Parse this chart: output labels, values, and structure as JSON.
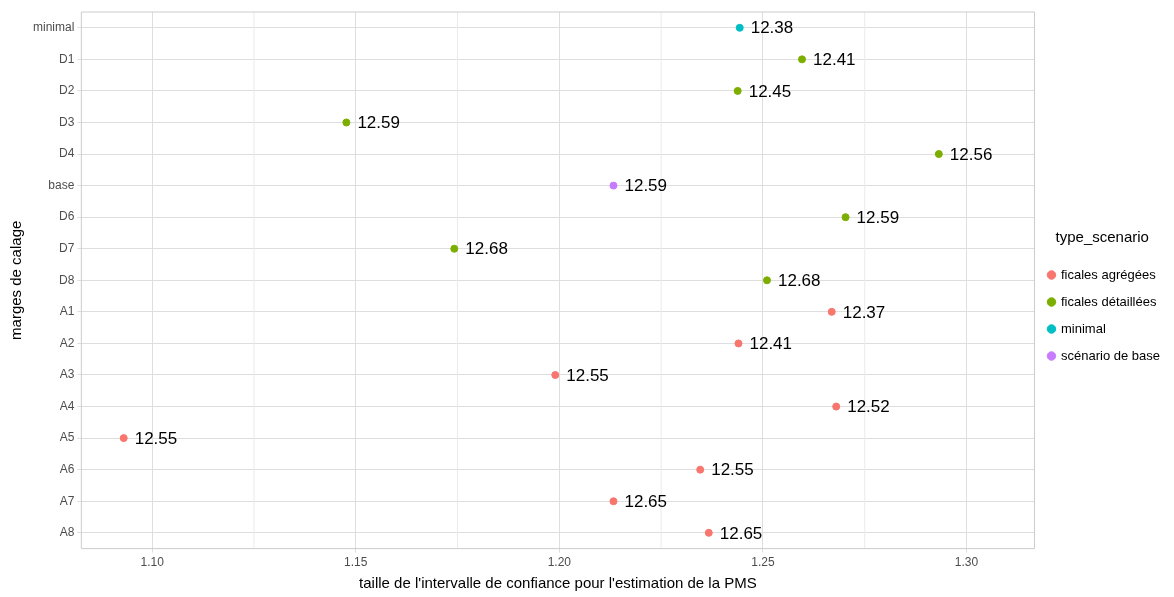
{
  "chart_data": {
    "type": "scatter",
    "orientation": "horizontal",
    "xlabel": "taille de l'intervalle de confiance pour l'estimation de la PMS",
    "ylabel": "marges de calage",
    "legend_title": "type_scenario",
    "categories": [
      "minimal",
      "D1",
      "D2",
      "D3",
      "D4",
      "base",
      "D6",
      "D7",
      "D8",
      "A1",
      "A2",
      "A3",
      "A4",
      "A5",
      "A6",
      "A7",
      "A8"
    ],
    "xlim": [
      1.0826,
      1.3167
    ],
    "xticks": [
      {
        "value": 1.1,
        "label": "1.10"
      },
      {
        "value": 1.15,
        "label": "1.15"
      },
      {
        "value": 1.2,
        "label": "1.20"
      },
      {
        "value": 1.25,
        "label": "1.25"
      },
      {
        "value": 1.3,
        "label": "1.30"
      }
    ],
    "series": [
      {
        "name": "ficales agrégées",
        "color": "#f8766d",
        "values": [
          null,
          null,
          null,
          null,
          null,
          null,
          null,
          null,
          null,
          1.2669,
          1.244,
          1.199,
          1.268,
          1.093,
          1.2346,
          1.2133,
          1.2367
        ]
      },
      {
        "name": "ficales détaillées",
        "color": "#7cae00",
        "values": [
          null,
          1.2596,
          1.2438,
          1.1477,
          1.2932,
          null,
          1.2703,
          1.1742,
          1.251,
          null,
          null,
          null,
          null,
          null,
          null,
          null,
          null
        ]
      },
      {
        "name": "minimal",
        "color": "#00bfc4",
        "values": [
          1.2443,
          null,
          null,
          null,
          null,
          null,
          null,
          null,
          null,
          null,
          null,
          null,
          null,
          null,
          null,
          null,
          null
        ]
      },
      {
        "name": "scénario de base",
        "color": "#c77cff",
        "values": [
          null,
          null,
          null,
          null,
          null,
          1.2133,
          null,
          null,
          null,
          null,
          null,
          null,
          null,
          null,
          null,
          null,
          null
        ]
      }
    ],
    "annotations": [
      {
        "text": "12.38",
        "x": 1.2443,
        "y": "minimal"
      },
      {
        "text": "12.41",
        "x": 1.2596,
        "y": "D1"
      },
      {
        "text": "12.45",
        "x": 1.2438,
        "y": "D2"
      },
      {
        "text": "12.59",
        "x": 1.1477,
        "y": "D3"
      },
      {
        "text": "12.56",
        "x": 1.2932,
        "y": "D4"
      },
      {
        "text": "12.59",
        "x": 1.2133,
        "y": "base"
      },
      {
        "text": "12.59",
        "x": 1.2703,
        "y": "D6"
      },
      {
        "text": "12.68",
        "x": 1.1742,
        "y": "D7"
      },
      {
        "text": "12.68",
        "x": 1.251,
        "y": "D8"
      },
      {
        "text": "12.37",
        "x": 1.2669,
        "y": "A1"
      },
      {
        "text": "12.41",
        "x": 1.244,
        "y": "A2"
      },
      {
        "text": "12.55",
        "x": 1.199,
        "y": "A3"
      },
      {
        "text": "12.52",
        "x": 1.268,
        "y": "A4"
      },
      {
        "text": "12.55",
        "x": 1.093,
        "y": "A5"
      },
      {
        "text": "12.55",
        "x": 1.2346,
        "y": "A6"
      },
      {
        "text": "12.65",
        "x": 1.2133,
        "y": "A7"
      },
      {
        "text": "12.65",
        "x": 1.2367,
        "y": "A8"
      }
    ],
    "grid": true,
    "legend": "right",
    "marker": "circle"
  }
}
